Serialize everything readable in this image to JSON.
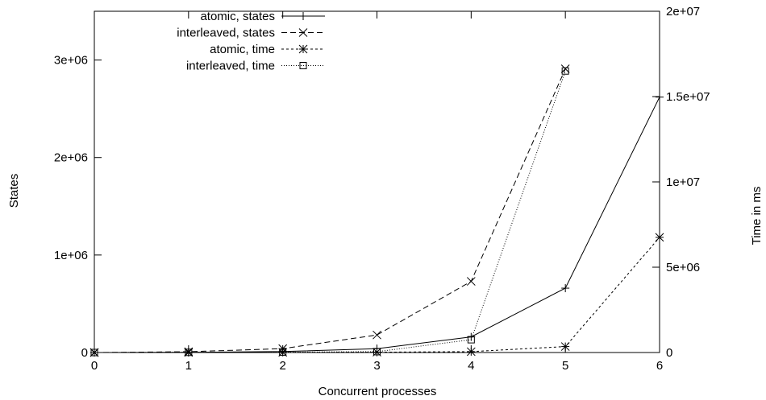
{
  "chart_data": {
    "type": "line",
    "title": "",
    "xlabel": "Concurrent processes",
    "ylabel": "States",
    "y2label": "Time in ms",
    "x": [
      0,
      1,
      2,
      3,
      4,
      5,
      6
    ],
    "xlim": [
      0,
      6
    ],
    "xticks": [
      "0",
      "1",
      "2",
      "3",
      "4",
      "5",
      "6"
    ],
    "ylim": [
      0,
      3500000
    ],
    "yticks": [
      {
        "value": 0,
        "label": "0"
      },
      {
        "value": 1000000,
        "label": "1e+06"
      },
      {
        "value": 2000000,
        "label": "2e+06"
      },
      {
        "value": 3000000,
        "label": "3e+06"
      }
    ],
    "y2lim": [
      0,
      20000000
    ],
    "y2ticks": [
      {
        "value": 0,
        "label": "0"
      },
      {
        "value": 5000000,
        "label": "5e+06"
      },
      {
        "value": 10000000,
        "label": "1e+07"
      },
      {
        "value": 15000000,
        "label": "1.5e+07"
      },
      {
        "value": 20000000,
        "label": "2e+07"
      }
    ],
    "grid": false,
    "legend_position": "top-left",
    "series": [
      {
        "name": "atomic, states",
        "axis": "left",
        "marker": "plus",
        "dash": "solid",
        "x": [
          0,
          1,
          2,
          3,
          4,
          5,
          6
        ],
        "values": [
          100,
          2000,
          10000,
          40000,
          160000,
          660000,
          2620000
        ]
      },
      {
        "name": "interleaved, states",
        "axis": "left",
        "marker": "cross",
        "dash": "dashed",
        "x": [
          0,
          1,
          2,
          3,
          4,
          5
        ],
        "values": [
          200,
          8000,
          40000,
          180000,
          730000,
          2910000
        ]
      },
      {
        "name": "atomic, time",
        "axis": "right",
        "marker": "star",
        "dash": "short-dashed",
        "x": [
          0,
          1,
          2,
          3,
          4,
          5,
          6
        ],
        "values": [
          0,
          5000,
          10000,
          20000,
          50000,
          350000,
          6750000
        ]
      },
      {
        "name": "interleaved, time",
        "axis": "right",
        "marker": "box",
        "dash": "dotted",
        "x": [
          0,
          1,
          2,
          3,
          4,
          5
        ],
        "values": [
          0,
          10000,
          20000,
          50000,
          750000,
          16500000
        ]
      }
    ]
  }
}
